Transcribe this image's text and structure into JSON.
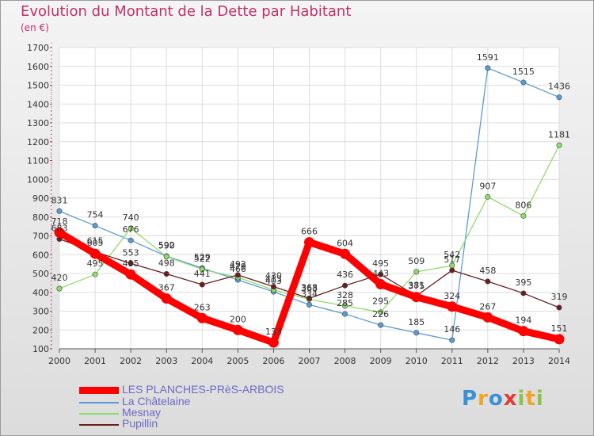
{
  "header": {
    "title": "Evolution du Montant de la Dette par Habitant",
    "unit": "(en €)"
  },
  "logo": {
    "text": "Proxiti",
    "icon": "proxiti-logo-icon"
  },
  "chart_data": {
    "type": "line",
    "title": "Evolution du Montant de la Dette par Habitant",
    "subtitle": "(en €)",
    "xlabel": "",
    "ylabel": "",
    "x": [
      "2000",
      "2001",
      "2002",
      "2003",
      "2004",
      "2005",
      "2006",
      "2007",
      "2008",
      "2009",
      "2010",
      "2011",
      "2012",
      "2013",
      "2014"
    ],
    "ylim": [
      100,
      1700
    ],
    "yticks": [
      100,
      200,
      300,
      400,
      500,
      600,
      700,
      800,
      900,
      1000,
      1100,
      1200,
      1300,
      1400,
      1500,
      1600,
      1700
    ],
    "grid": true,
    "legend": "bottom-left",
    "series": [
      {
        "name": "LES PLANCHES-PRèS-ARBOIS",
        "color": "#ff0000",
        "width": 9,
        "values": [
          718,
          605,
          495,
          367,
          263,
          200,
          133,
          666,
          604,
          443,
          375,
          324,
          267,
          194,
          151
        ]
      },
      {
        "name": "La Châtelaine",
        "color": "#5b9bd5",
        "width": 1.3,
        "values": [
          831,
          754,
          676,
          592,
          529,
          466,
          403,
          334,
          285,
          226,
          185,
          146,
          1591,
          1515,
          1436
        ]
      },
      {
        "name": "Mesnay",
        "color": "#8fdc6a",
        "width": 1.3,
        "values": [
          420,
          495,
          740,
          590,
          522,
          479,
          413,
          363,
          328,
          295,
          509,
          542,
          907,
          806,
          1181
        ]
      },
      {
        "name": "Pupillin",
        "color": "#6b1e1e",
        "width": 1.3,
        "values": [
          683,
          615,
          553,
          498,
          441,
          492,
          430,
          368,
          436,
          495,
          381,
          517,
          458,
          395,
          319
        ]
      }
    ]
  }
}
